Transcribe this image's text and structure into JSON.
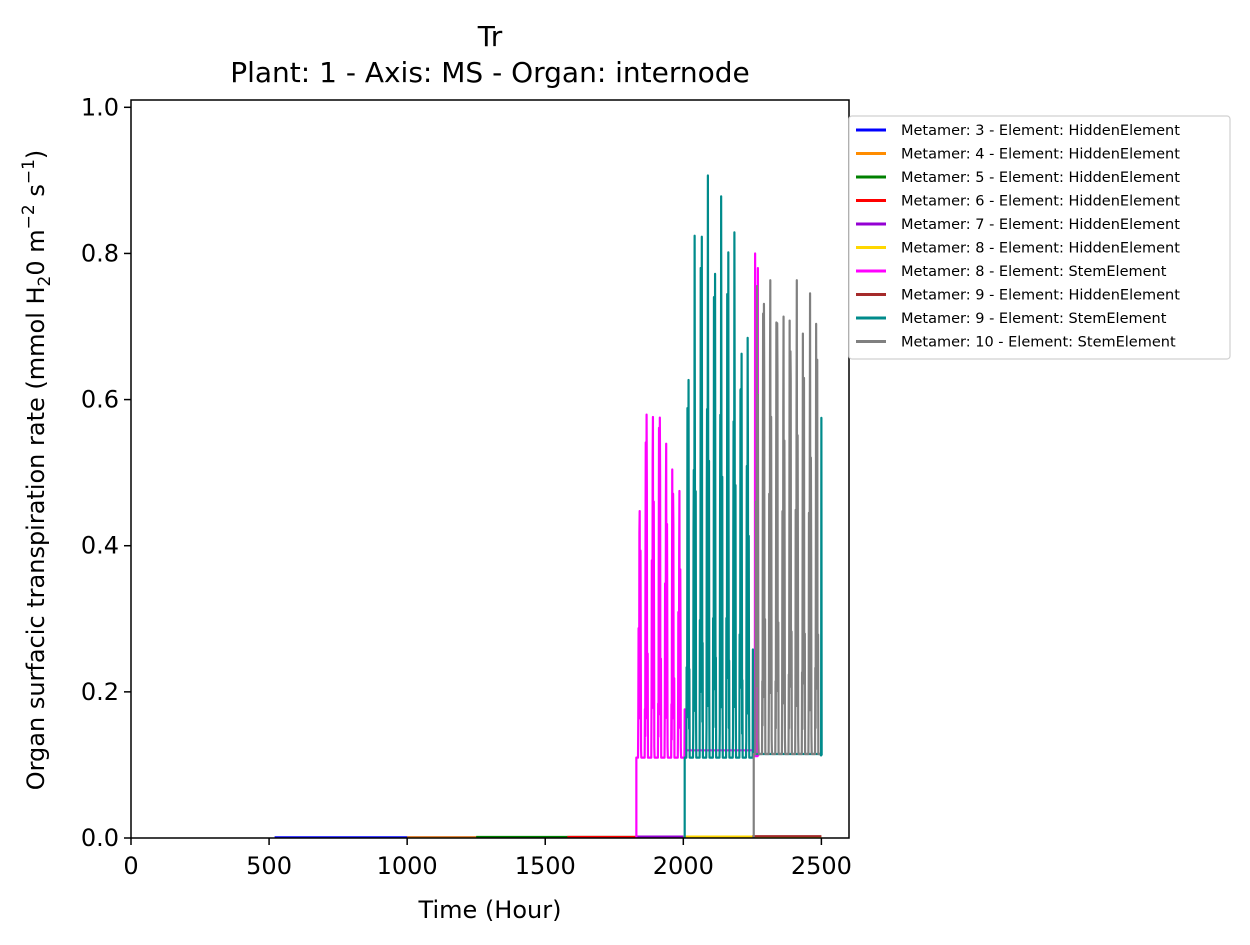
{
  "chart_data": {
    "type": "line",
    "title": "Tr",
    "subtitle": "Plant: 1 - Axis: MS - Organ: internode",
    "xlabel": "Time (Hour)",
    "ylabel": {
      "prefix": "Organ surfacic transpiration rate (mmol H",
      "sub": "2",
      "mid": "0 m",
      "sup1": "−2",
      "mid2": " s",
      "sup2": "−1",
      "suffix": ")"
    },
    "xlim": [
      0,
      2600
    ],
    "ylim": [
      0,
      1.01
    ],
    "xticks": [
      0,
      500,
      1000,
      1500,
      2000,
      2500
    ],
    "xtick_labels": [
      "0",
      "500",
      "1000",
      "1500",
      "2000",
      "2500"
    ],
    "yticks": [
      0.0,
      0.2,
      0.4,
      0.6,
      0.8,
      1.0
    ],
    "ytick_labels": [
      "0.0",
      "0.2",
      "0.4",
      "0.6",
      "0.8",
      "1.0"
    ],
    "grid": false,
    "legend_position": "outside upper right",
    "series": [
      {
        "name": "Metamer: 3 - Element: HiddenElement",
        "color": "#0000ff",
        "kind": "flat",
        "x": [
          520,
          2500
        ],
        "level": 0.001
      },
      {
        "name": "Metamer: 4 - Element: HiddenElement",
        "color": "#ff8c00",
        "kind": "flat",
        "x": [
          1000,
          2500
        ],
        "level": 0.001
      },
      {
        "name": "Metamer: 5 - Element: HiddenElement",
        "color": "#008000",
        "kind": "flat",
        "x": [
          1250,
          2500
        ],
        "level": 0.0015
      },
      {
        "name": "Metamer: 6 - Element: HiddenElement",
        "color": "#ff0000",
        "kind": "flat",
        "x": [
          1580,
          2500
        ],
        "level": 0.0015
      },
      {
        "name": "Metamer: 7 - Element: HiddenElement",
        "color": "#9400d3",
        "kind": "flat",
        "x": [
          1830,
          2500
        ],
        "level": 0.002
      },
      {
        "name": "Metamer: 8 - Element: HiddenElement",
        "color": "#ffd700",
        "kind": "flat",
        "x": [
          2000,
          2500
        ],
        "level": 0.002
      },
      {
        "name": "Metamer: 8 - Element: StemElement",
        "color": "#ff00ff",
        "kind": "diurnal",
        "start": 1830,
        "end": 2500,
        "base": 0.11,
        "tail_base": 0.112,
        "peaks": [
          [
            1830,
            0.41
          ],
          [
            1855,
            0.6
          ],
          [
            1867,
            0.65
          ],
          [
            1879,
            0.69
          ],
          [
            1891,
            0.63
          ],
          [
            1903,
            0.63
          ],
          [
            1915,
            0.66
          ],
          [
            1927,
            0.6
          ],
          [
            1939,
            0.58
          ],
          [
            1951,
            0.66
          ],
          [
            1963,
            0.55
          ],
          [
            1975,
            0.52
          ],
          [
            1987,
            0.5
          ],
          [
            1999,
            0.55
          ],
          [
            2005,
            0.53
          ]
        ],
        "tail_peaks": [
          [
            2010,
            0.12
          ],
          [
            2250,
            0.12
          ],
          [
            2260,
            0.8
          ],
          [
            2270,
            0.78
          ]
        ]
      },
      {
        "name": "Metamer: 9 - Element: HiddenElement",
        "color": "#a52a2a",
        "kind": "flat",
        "x": [
          2250,
          2500
        ],
        "level": 0.0025
      },
      {
        "name": "Metamer: 9 - Element: StemElement",
        "color": "#008b8b",
        "kind": "diurnal",
        "start": 2005,
        "end": 2500,
        "base": 0.11,
        "tail_base": 0.113,
        "peaks": [
          [
            2005,
            0.6
          ],
          [
            2017,
            0.7
          ],
          [
            2029,
            0.75
          ],
          [
            2041,
            0.83
          ],
          [
            2053,
            0.91
          ],
          [
            2065,
            0.93
          ],
          [
            2077,
            0.95
          ],
          [
            2089,
            0.92
          ],
          [
            2101,
            0.96
          ],
          [
            2113,
            0.88
          ],
          [
            2125,
            0.85
          ],
          [
            2137,
            0.9
          ],
          [
            2149,
            0.85
          ],
          [
            2161,
            0.93
          ],
          [
            2173,
            0.82
          ],
          [
            2185,
            0.86
          ],
          [
            2197,
            0.85
          ],
          [
            2209,
            0.75
          ],
          [
            2221,
            0.78
          ],
          [
            2233,
            0.72
          ],
          [
            2245,
            0.71
          ],
          [
            2252,
            0.7
          ]
        ],
        "tail_peaks": [
          [
            2255,
            0.115
          ],
          [
            2495,
            0.115
          ],
          [
            2500,
            0.575
          ]
        ]
      },
      {
        "name": "Metamer: 10 - Element: StemElement",
        "color": "#808080",
        "kind": "diurnal",
        "start": 2255,
        "end": 2500,
        "base": 0.115,
        "tail_base": 0.115,
        "peaks": [
          [
            2255,
            0.76
          ],
          [
            2267,
            0.84
          ],
          [
            2279,
            0.85
          ],
          [
            2291,
            0.84
          ],
          [
            2303,
            0.83
          ],
          [
            2315,
            0.83
          ],
          [
            2327,
            0.75
          ],
          [
            2339,
            0.83
          ],
          [
            2351,
            0.82
          ],
          [
            2363,
            0.76
          ],
          [
            2375,
            0.82
          ],
          [
            2387,
            0.81
          ],
          [
            2399,
            0.75
          ],
          [
            2411,
            0.8
          ],
          [
            2423,
            0.81
          ],
          [
            2435,
            0.78
          ],
          [
            2447,
            0.79
          ],
          [
            2459,
            0.77
          ],
          [
            2471,
            0.78
          ],
          [
            2483,
            0.8
          ],
          [
            2495,
            0.78
          ]
        ],
        "tail_peaks": []
      }
    ]
  }
}
